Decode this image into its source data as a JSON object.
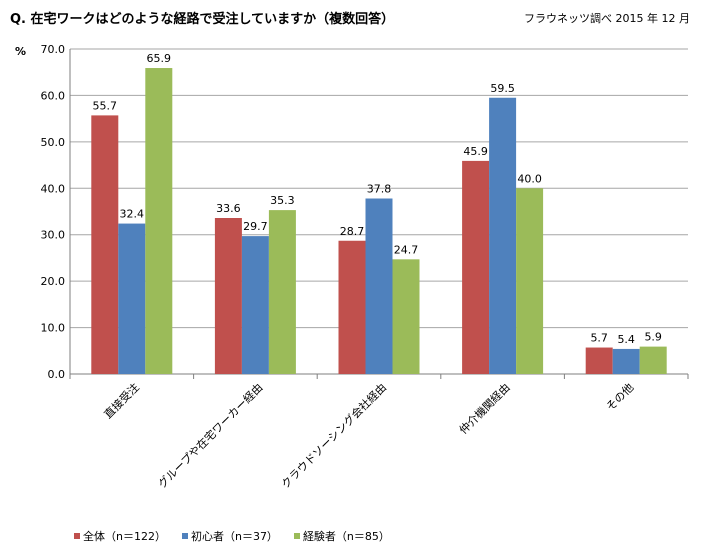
{
  "title": "Q. 在宅ワークはどのような経路で受注していますか（複数回答）",
  "source": "フラウネッツ調べ 2015 年 12 月",
  "chart_data": {
    "type": "bar",
    "ylabel": "%",
    "ylim": [
      0,
      70
    ],
    "yticks": [
      "0.0",
      "10.0",
      "20.0",
      "30.0",
      "40.0",
      "50.0",
      "60.0",
      "70.0"
    ],
    "grid": true,
    "legend_position": "bottom",
    "categories": [
      "直接受注",
      "グループや在宅ワーカー経由",
      "クラウドソーシング会社経由",
      "仲介機関経由",
      "その他"
    ],
    "series": [
      {
        "name": "全体（n＝122）",
        "color": "#c0504d",
        "values": [
          55.7,
          33.6,
          28.7,
          45.9,
          5.7
        ],
        "labels": [
          "55.7",
          "33.6",
          "28.7",
          "45.9",
          "5.7"
        ]
      },
      {
        "name": "初心者（n＝37）",
        "color": "#4f81bd",
        "values": [
          32.4,
          29.7,
          37.8,
          59.5,
          5.4
        ],
        "labels": [
          "32.4",
          "29.7",
          "37.8",
          "59.5",
          "5.4"
        ]
      },
      {
        "name": "経験者（n＝85）",
        "color": "#9bbb59",
        "values": [
          65.9,
          35.3,
          24.7,
          40.0,
          5.9
        ],
        "labels": [
          "65.9",
          "35.3",
          "24.7",
          "40.0",
          "5.9"
        ]
      }
    ]
  }
}
